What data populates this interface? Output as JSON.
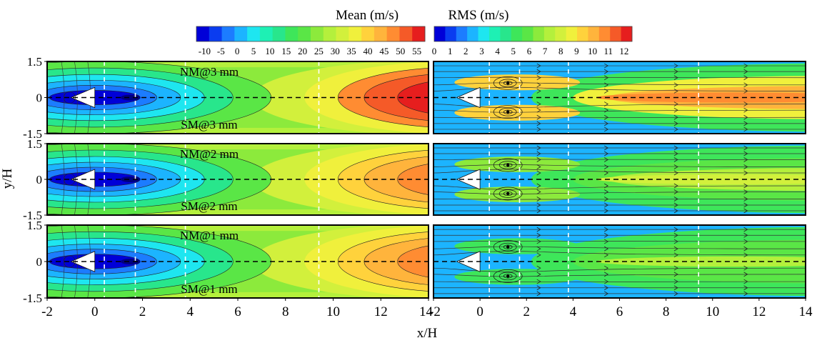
{
  "chart_data": {
    "type": "heatmap",
    "xlabel": "x/H",
    "ylabel": "y/H",
    "xlim": [
      -2,
      14
    ],
    "ylim": [
      -1.5,
      1.5
    ],
    "x_ticks": [
      "-2",
      "0",
      "2",
      "4",
      "6",
      "8",
      "10",
      "12",
      "14"
    ],
    "y_ticks": [
      "1.5",
      "0",
      "-1.5"
    ],
    "reference_x_lines": [
      0.4,
      1.7,
      3.8,
      9.4
    ],
    "colorbars": [
      {
        "name": "mean",
        "title": "Mean (m/s)",
        "range": [
          -12.5,
          57.5
        ],
        "tick_labels": [
          "-10",
          "-5",
          "0",
          "5",
          "10",
          "15",
          "20",
          "25",
          "30",
          "35",
          "40",
          "45",
          "50",
          "55"
        ],
        "colors": [
          "#0000d8",
          "#0a3cf0",
          "#1c7cff",
          "#1cb4ff",
          "#1ee6f0",
          "#1ef0b4",
          "#28e68c",
          "#3ee65a",
          "#5ae646",
          "#8cea3c",
          "#b4f03c",
          "#d2f03c",
          "#f0f03c",
          "#ffd23c",
          "#ffb43c",
          "#ff8c32",
          "#f55a28",
          "#e61e1e"
        ]
      },
      {
        "name": "rms",
        "title": "RMS (m/s)",
        "range": [
          0,
          12.5
        ],
        "tick_labels": [
          "0",
          "1",
          "2",
          "3",
          "4",
          "5",
          "6",
          "7",
          "8",
          "9",
          "10",
          "11",
          "12"
        ],
        "colors": [
          "#0000d8",
          "#0a3cf0",
          "#1c7cff",
          "#1cb4ff",
          "#1ee6f0",
          "#1ef0b4",
          "#28e68c",
          "#3ee65a",
          "#5ae646",
          "#8cea3c",
          "#b4f03c",
          "#d2f03c",
          "#f0f03c",
          "#ffd23c",
          "#ffb43c",
          "#ff8c32",
          "#f55a28",
          "#e61e1e"
        ]
      }
    ],
    "rows": [
      {
        "top_label": "NM@3 mm",
        "bottom_label": "SM@3 mm",
        "mean_peak": 54,
        "rms_level": 11
      },
      {
        "top_label": "NM@2 mm",
        "bottom_label": "SM@2 mm",
        "mean_peak": 49,
        "rms_level": 8
      },
      {
        "top_label": "NM@1 mm",
        "bottom_label": "SM@1 mm",
        "mean_peak": 47,
        "rms_level": 7
      }
    ],
    "panels": [
      "mean",
      "rms"
    ]
  }
}
